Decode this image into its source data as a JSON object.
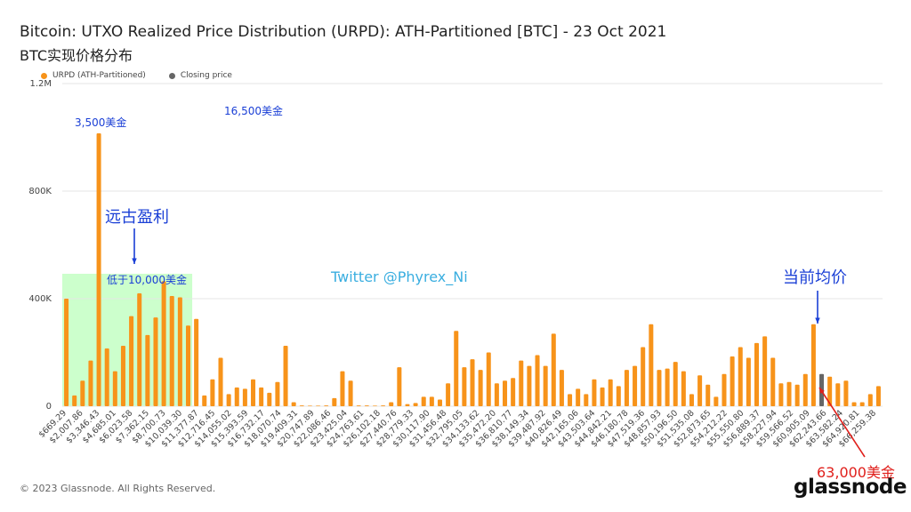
{
  "title": "Bitcoin: UTXO Realized Price Distribution (URPD): ATH-Partitioned [BTC] - 23 Oct 2021",
  "subtitle": "BTC实现价格分布",
  "legend": [
    {
      "label": "URPD (ATH-Partitioned)",
      "color": "#f7931a"
    },
    {
      "label": "Closing price",
      "color": "#666666"
    }
  ],
  "colors": {
    "bar": "#f7931a",
    "closing": "#666666",
    "highlight": "#ccffcc",
    "annotation_blue": "#1a3fd6",
    "annotation_red": "#e0201c",
    "watermark": "#3aaee0"
  },
  "annotations": {
    "a3500": "3,500美金",
    "a16500": "16,500美金",
    "ancient": "远古盈利",
    "below10000": "低于10,000美金",
    "twitter": "Twitter @Phyrex_Ni",
    "avg": "当前均价",
    "a63000": "63,000美金"
  },
  "footer": "© 2023 Glassnode. All Rights Reserved.",
  "logo": "glassnode",
  "chart_data": {
    "type": "bar",
    "ylim": [
      0,
      1200000
    ],
    "yticks": [
      {
        "v": 0,
        "label": "0"
      },
      {
        "v": 400000,
        "label": "400K"
      },
      {
        "v": 800000,
        "label": "800K"
      },
      {
        "v": 1200000,
        "label": "1.2M"
      }
    ],
    "xticks": [
      "$669.29",
      "$2,007.86",
      "$3,346.43",
      "$4,685.01",
      "$6,023.58",
      "$7,362.15",
      "$8,700.73",
      "$10,039.30",
      "$11,377.87",
      "$12,716.45",
      "$14,055.02",
      "$15,393.59",
      "$16,732.17",
      "$18,070.74",
      "$19,409.31",
      "$20,747.89",
      "$22,086.46",
      "$23,425.04",
      "$24,763.61",
      "$26,102.18",
      "$27,440.76",
      "$28,779.33",
      "$30,117.90",
      "$31,456.48",
      "$32,795.05",
      "$34,133.62",
      "$35,472.20",
      "$36,810.77",
      "$38,149.34",
      "$39,487.92",
      "$40,826.49",
      "$42,165.06",
      "$43,503.64",
      "$44,842.21",
      "$46,180.78",
      "$47,519.36",
      "$48,857.93",
      "$50,196.50",
      "$51,535.08",
      "$52,873.65",
      "$54,212.22",
      "$55,550.80",
      "$56,889.37",
      "$58,227.94",
      "$59,566.52",
      "$60,905.09",
      "$62,243.66",
      "$63,582.24",
      "$64,920.81",
      "$66,259.38"
    ],
    "values": [
      400000,
      40000,
      95000,
      170000,
      1015000,
      215000,
      130000,
      225000,
      335000,
      420000,
      265000,
      330000,
      465000,
      410000,
      405000,
      300000,
      325000,
      40000,
      100000,
      180000,
      45000,
      70000,
      65000,
      100000,
      70000,
      50000,
      90000,
      225000,
      15000,
      3000,
      2000,
      2000,
      3000,
      30000,
      130000,
      95000,
      3000,
      3000,
      2000,
      3000,
      15000,
      145000,
      8000,
      12000,
      35000,
      35000,
      25000,
      85000,
      280000,
      145000,
      175000,
      135000,
      200000,
      85000,
      95000,
      105000,
      170000,
      150000,
      190000,
      150000,
      270000,
      135000,
      45000,
      65000,
      45000,
      100000,
      70000,
      100000,
      75000,
      135000,
      150000,
      220000,
      305000,
      135000,
      140000,
      165000,
      130000,
      45000,
      115000,
      80000,
      35000,
      120000,
      185000,
      220000,
      180000,
      235000,
      260000,
      180000,
      85000,
      90000,
      80000,
      120000,
      305000,
      120000,
      110000,
      85000,
      95000,
      15000,
      15000,
      45000,
      75000
    ],
    "closing_index": 93,
    "highlight_bar_range": [
      0,
      15
    ]
  }
}
